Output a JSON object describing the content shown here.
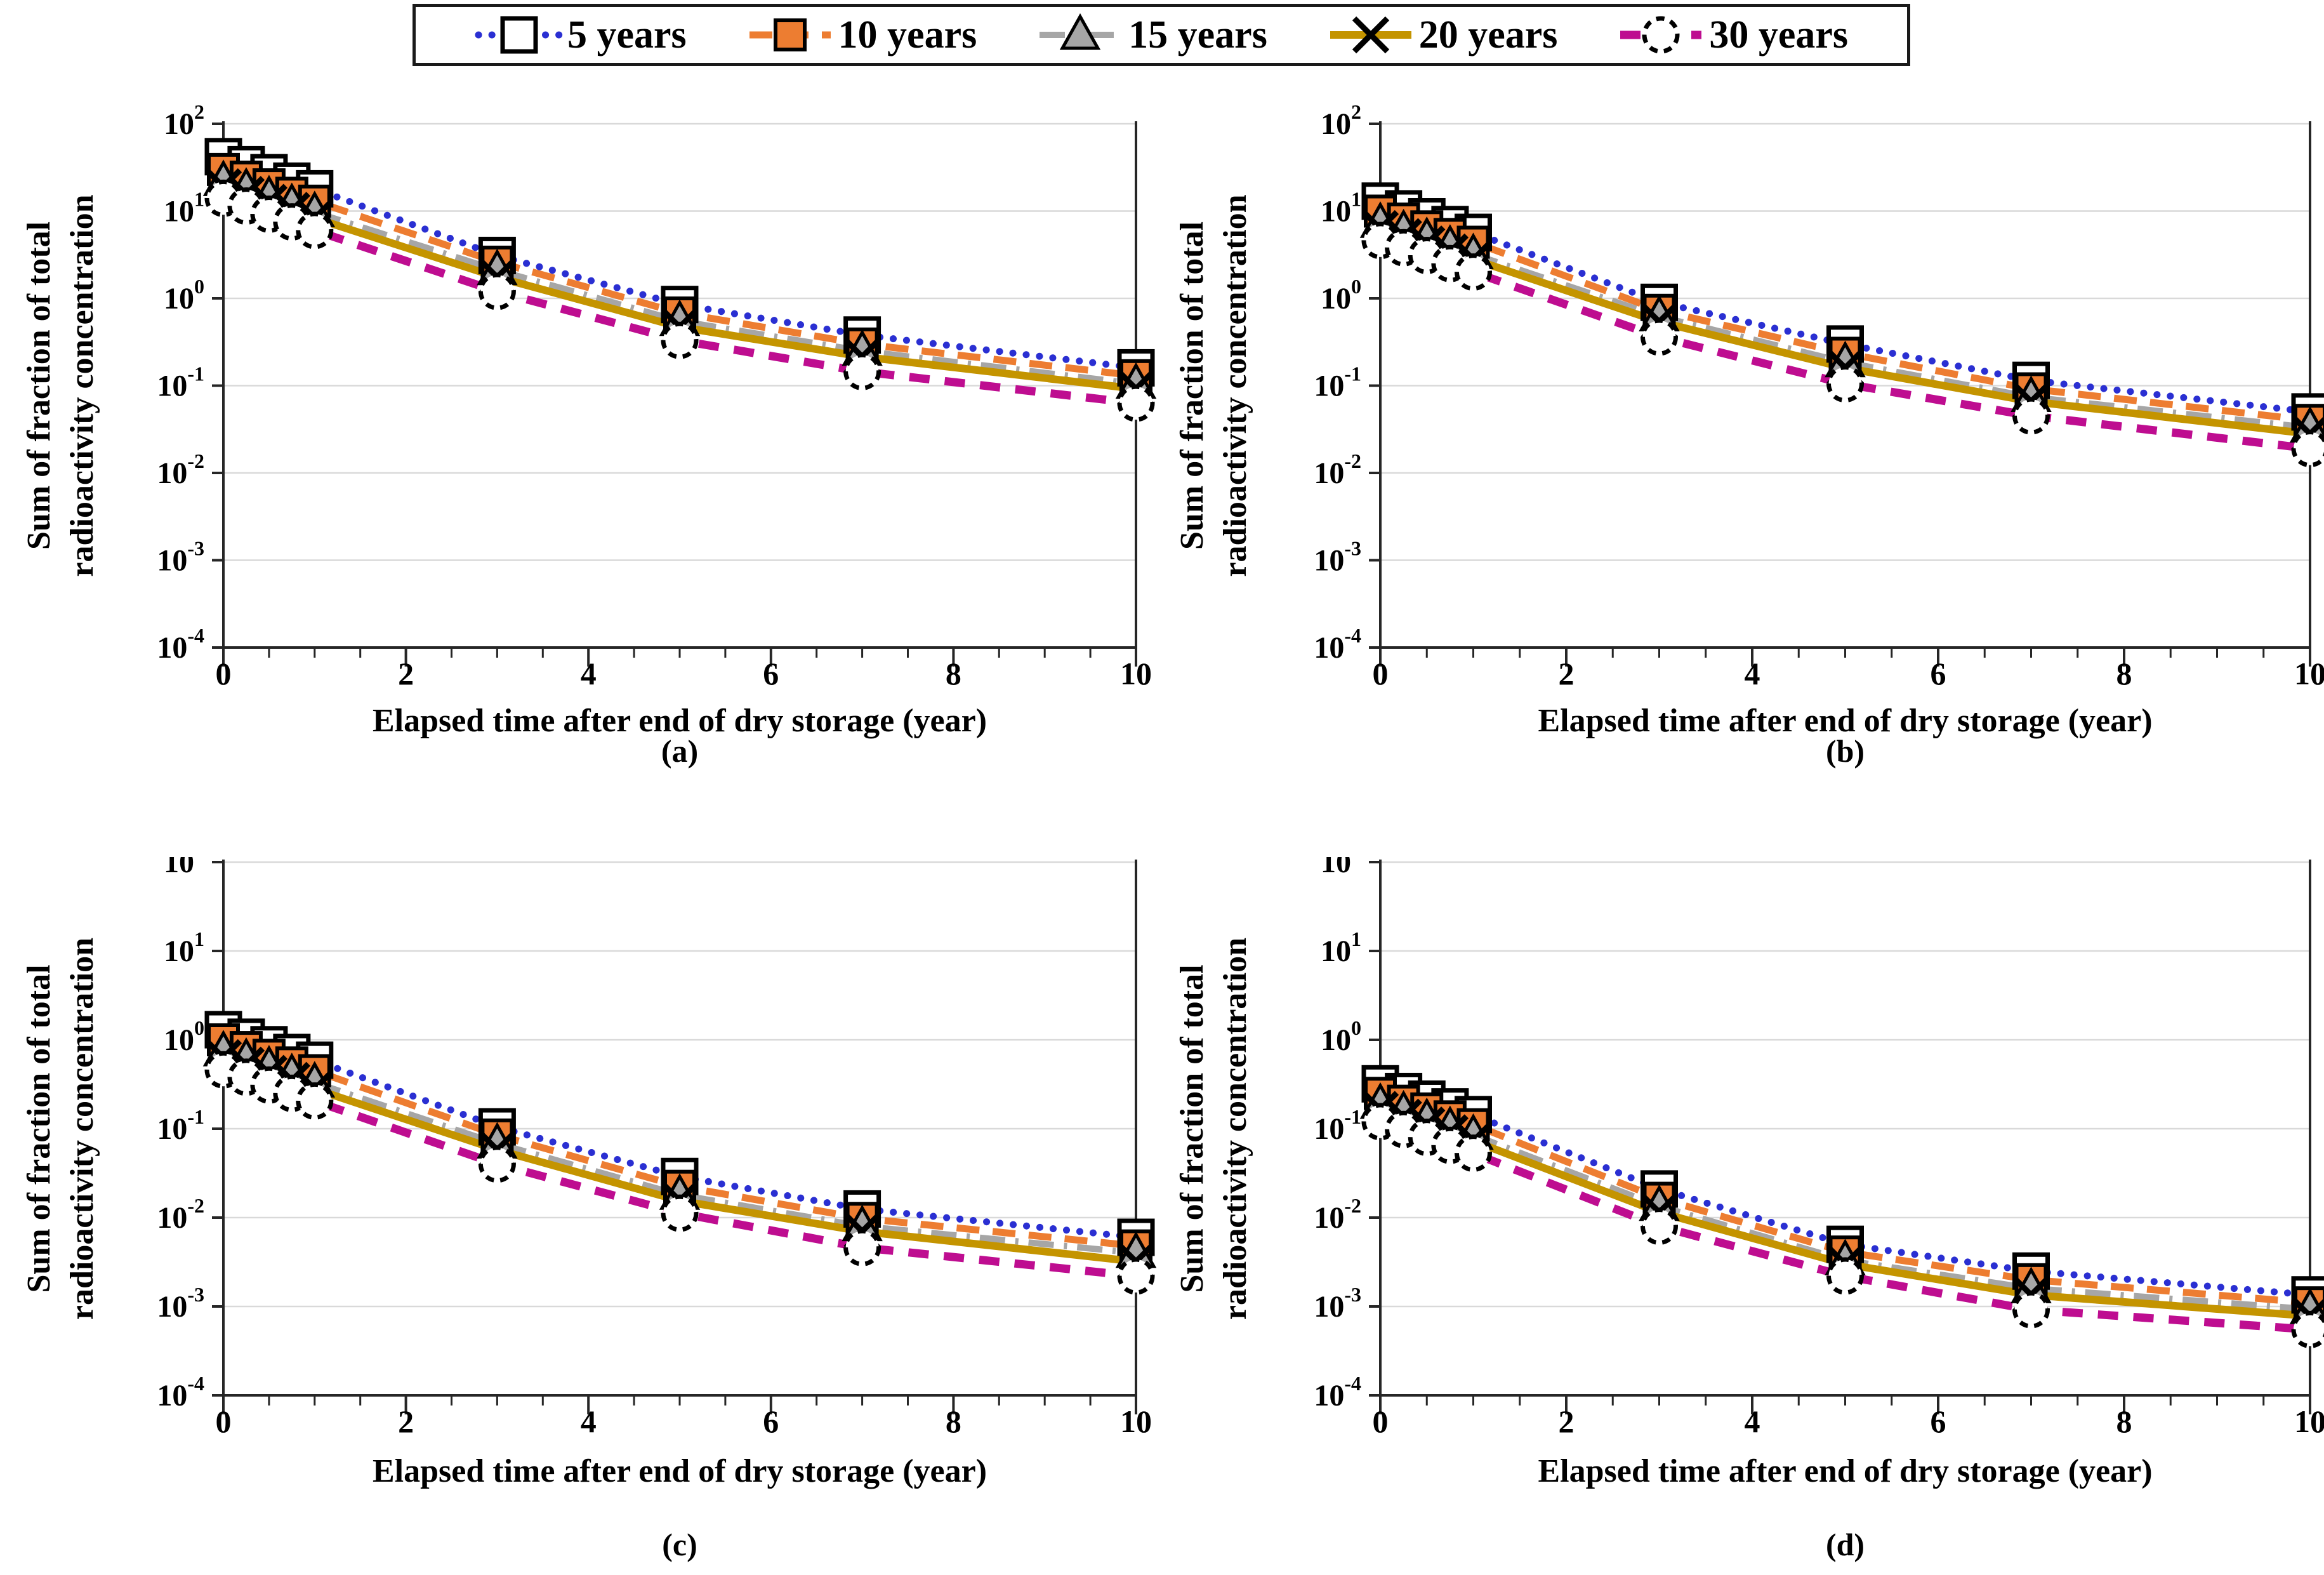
{
  "figure": {
    "background": "#FFFFFF",
    "panel_captions": [
      "(a)",
      "(b)",
      "(c)",
      "(d)"
    ]
  },
  "legend": {
    "items": [
      {
        "key": "5y",
        "label": "5 years"
      },
      {
        "key": "10y",
        "label": "10 years"
      },
      {
        "key": "15y",
        "label": "15 years"
      },
      {
        "key": "20y",
        "label": "20 years"
      },
      {
        "key": "30y",
        "label": "30 years"
      }
    ]
  },
  "styles": {
    "5y": {
      "color": "#2A2FD2",
      "line": "dotted",
      "marker": "open-square"
    },
    "10y": {
      "color": "#ED7D31",
      "line": "long-dash",
      "marker": "filled-square"
    },
    "15y": {
      "color": "#A6A6A6",
      "line": "dash-dot",
      "marker": "filled-triangle"
    },
    "20y": {
      "color": "#C49400",
      "line": "solid",
      "marker": "x-cross"
    },
    "30y": {
      "color": "#BE0D90",
      "line": "dash",
      "marker": "open-circle"
    },
    "grid_color": "#D9D9D9",
    "axis_color": "#262626",
    "marker_edge": "#000000",
    "marker_open_fill": "#FFFFFF"
  },
  "axes": {
    "x_label": "Elapsed time after end of dry storage (year)",
    "y_label_line1": "Sum of fraction of total",
    "y_label_line2": "radioactivity concentration",
    "x_ticks": [
      0,
      2,
      4,
      6,
      8,
      10
    ],
    "x_minor_step": 0.5,
    "xlim": [
      0,
      10
    ],
    "y_exponents": [
      2,
      1,
      0,
      -1,
      -2,
      -3,
      -4
    ]
  },
  "chart_data": [
    {
      "type": "line",
      "panel": "(a)",
      "xlabel": "Elapsed time after end of dry storage (year)",
      "ylabel": "Sum of fraction of total radioactivity concentration",
      "xlim": [
        0,
        10
      ],
      "ylim_log10": [
        -4,
        2
      ],
      "grid": "horizontal-decades",
      "legend_position": "top-shared",
      "x": [
        0,
        0.25,
        0.5,
        0.75,
        1,
        3,
        5,
        7,
        10
      ],
      "series": [
        {
          "key": "5y",
          "name": "5 years",
          "values": [
            42,
            34,
            27.5,
            22,
            18,
            3.1,
            0.85,
            0.38,
            0.16
          ]
        },
        {
          "key": "10y",
          "name": "10 years",
          "values": [
            30,
            24.5,
            20,
            16,
            13,
            2.6,
            0.68,
            0.3,
            0.13
          ]
        },
        {
          "key": "15y",
          "name": "15 years",
          "values": [
            22,
            18,
            14.7,
            12,
            9.7,
            2.1,
            0.55,
            0.25,
            0.105
          ]
        },
        {
          "key": "20y",
          "name": "20 years",
          "values": [
            19,
            15.5,
            12.6,
            10.2,
            8.3,
            1.75,
            0.47,
            0.215,
            0.092
          ]
        },
        {
          "key": "30y",
          "name": "30 years",
          "values": [
            14,
            11.4,
            9.2,
            7.5,
            6.0,
            1.2,
            0.33,
            0.145,
            0.063
          ]
        }
      ]
    },
    {
      "type": "line",
      "panel": "(b)",
      "xlabel": "Elapsed time after end of dry storage (year)",
      "ylabel": "Sum of fraction of total radioactivity concentration",
      "xlim": [
        0,
        10
      ],
      "ylim_log10": [
        -4,
        2
      ],
      "grid": "horizontal-decades",
      "legend_position": "top-shared",
      "x": [
        0,
        0.25,
        0.5,
        0.75,
        1,
        3,
        5,
        7,
        10
      ],
      "series": [
        {
          "key": "5y",
          "name": "5 years",
          "values": [
            13,
            10.6,
            8.6,
            7.0,
            5.7,
            0.9,
            0.3,
            0.115,
            0.05
          ]
        },
        {
          "key": "10y",
          "name": "10 years",
          "values": [
            10,
            8.1,
            6.6,
            5.4,
            4.4,
            0.73,
            0.235,
            0.092,
            0.04
          ]
        },
        {
          "key": "15y",
          "name": "15 years",
          "values": [
            7.3,
            6.0,
            4.9,
            4.0,
            3.2,
            0.62,
            0.185,
            0.074,
            0.033
          ]
        },
        {
          "key": "20y",
          "name": "20 years",
          "values": [
            6.3,
            5.1,
            4.2,
            3.4,
            2.8,
            0.54,
            0.16,
            0.066,
            0.028
          ]
        },
        {
          "key": "30y",
          "name": "30 years",
          "values": [
            4.6,
            3.8,
            3.1,
            2.5,
            2.0,
            0.36,
            0.105,
            0.045,
            0.019
          ]
        }
      ]
    },
    {
      "type": "line",
      "panel": "(c)",
      "xlabel": "Elapsed time after end of dry storage (year)",
      "ylabel": "Sum of fraction of total radioactivity concentration",
      "xlim": [
        0,
        10
      ],
      "ylim_log10": [
        -4,
        2
      ],
      "grid": "horizontal-decades",
      "legend_position": "top-shared",
      "x": [
        0,
        0.25,
        0.5,
        0.75,
        1,
        3,
        5,
        7,
        10
      ],
      "series": [
        {
          "key": "5y",
          "name": "5 years",
          "values": [
            1.3,
            1.07,
            0.88,
            0.72,
            0.59,
            0.105,
            0.029,
            0.0125,
            0.006
          ]
        },
        {
          "key": "10y",
          "name": "10 years",
          "values": [
            1.0,
            0.82,
            0.67,
            0.55,
            0.45,
            0.085,
            0.0225,
            0.0098,
            0.0048
          ]
        },
        {
          "key": "15y",
          "name": "15 years",
          "values": [
            0.74,
            0.61,
            0.5,
            0.41,
            0.33,
            0.068,
            0.018,
            0.008,
            0.004
          ]
        },
        {
          "key": "20y",
          "name": "20 years",
          "values": [
            0.63,
            0.52,
            0.42,
            0.35,
            0.28,
            0.058,
            0.0155,
            0.007,
            0.0032
          ]
        },
        {
          "key": "30y",
          "name": "30 years",
          "values": [
            0.46,
            0.38,
            0.31,
            0.25,
            0.205,
            0.04,
            0.0112,
            0.0046,
            0.0022
          ]
        }
      ]
    },
    {
      "type": "line",
      "panel": "(d)",
      "xlabel": "Elapsed time after end of dry storage (year)",
      "ylabel": "Sum of fraction of total radioactivity concentration",
      "xlim": [
        0,
        10
      ],
      "ylim_log10": [
        -4,
        2
      ],
      "grid": "horizontal-decades",
      "legend_position": "top-shared",
      "x": [
        0,
        0.25,
        0.5,
        0.75,
        1,
        3,
        5,
        7,
        10
      ],
      "series": [
        {
          "key": "5y",
          "name": "5 years",
          "values": [
            0.32,
            0.262,
            0.215,
            0.176,
            0.144,
            0.021,
            0.005,
            0.0025,
            0.00135
          ]
        },
        {
          "key": "10y",
          "name": "10 years",
          "values": [
            0.25,
            0.204,
            0.167,
            0.136,
            0.111,
            0.0165,
            0.0041,
            0.002,
            0.0011
          ]
        },
        {
          "key": "15y",
          "name": "15 years",
          "values": [
            0.19,
            0.156,
            0.128,
            0.104,
            0.085,
            0.0135,
            0.0033,
            0.0016,
            0.00093
          ]
        },
        {
          "key": "20y",
          "name": "20 years",
          "values": [
            0.165,
            0.135,
            0.11,
            0.09,
            0.073,
            0.0115,
            0.003,
            0.00135,
            0.00078
          ]
        },
        {
          "key": "30y",
          "name": "30 years",
          "values": [
            0.12,
            0.098,
            0.08,
            0.065,
            0.053,
            0.008,
            0.0022,
            0.00092,
            0.00055
          ]
        }
      ]
    }
  ]
}
